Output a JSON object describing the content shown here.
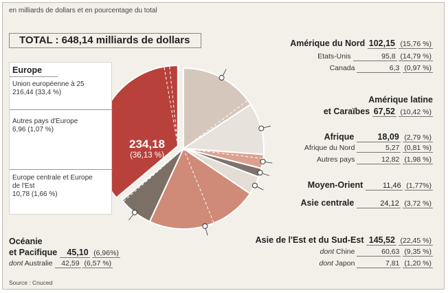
{
  "subtitle": "en milliards de dollars et en pourcentage du total",
  "total": {
    "label": "TOTAL :",
    "value": "648,14 milliards de dollars"
  },
  "europe": {
    "title": "Europe",
    "value": "234,18",
    "percent": "(36,13 %)",
    "items": [
      {
        "name": "Union européenne à 25",
        "value": "216,44",
        "percent": "(33,4 %)"
      },
      {
        "name": "Autres pays d'Europe",
        "value": "6,96",
        "percent": "(1,07 %)"
      },
      {
        "name": "Europe centrale et Europe de l'Est",
        "value": "10,78",
        "percent": "(1,66 %)"
      }
    ]
  },
  "amerique_nord": {
    "name": "Amérique du Nord",
    "value": "102,15",
    "percent": "(15,76 %)",
    "items": [
      {
        "name": "Etats-Unis",
        "value": "95,8",
        "percent": "(14,79 %)"
      },
      {
        "name": "Canada",
        "value": "6,3",
        "percent": "(0,97 %)"
      }
    ]
  },
  "amerique_latine": {
    "name_line1": "Amérique latine",
    "name_line2": "et Caraïbes",
    "value": "67,52",
    "percent": "(10,42 %)"
  },
  "afrique": {
    "name": "Afrique",
    "value": "18,09",
    "percent": "(2,79 %)",
    "items": [
      {
        "name": "Afrique du Nord",
        "value": "5,27",
        "percent": "(0,81 %)"
      },
      {
        "name": "Autres pays",
        "value": "12,82",
        "percent": "(1,98 %)"
      }
    ]
  },
  "moyen_orient": {
    "name": "Moyen-Orient",
    "value": "11,46",
    "percent": "(1,77%)"
  },
  "asie_centrale": {
    "name": "Asie centrale",
    "value": "24,12",
    "percent": "(3,72 %)"
  },
  "asie_est": {
    "name": "Asie de l'Est et du Sud-Est",
    "value": "145,52",
    "percent": "(22,45 %)",
    "items": [
      {
        "prefix": "dont",
        "name": "Chine",
        "value": "60,63",
        "percent": "(9,35 %)"
      },
      {
        "prefix": "dont",
        "name": "Japon",
        "value": "7,81",
        "percent": "(1,20 %)"
      }
    ]
  },
  "oceanie": {
    "name_line1": "Océanie",
    "name_line2": "et Pacifique",
    "value": "45,10",
    "percent": "(6,96%)",
    "items": [
      {
        "prefix": "dont",
        "name": "Australie",
        "value": "42,59",
        "percent": "(6,57 %)"
      }
    ]
  },
  "source": "Source : Cnuced",
  "chart_data": {
    "type": "pie",
    "total": 648.14,
    "slices": [
      {
        "label": "Europe",
        "value": 234.18,
        "color": "#b8413c",
        "exploded": true,
        "subdivisions": [
          {
            "label": "Union européenne à 25",
            "value": 216.44
          },
          {
            "label": "Autres pays d'Europe",
            "value": 6.96
          },
          {
            "label": "Europe centrale et Europe de l'Est",
            "value": 10.78
          }
        ]
      },
      {
        "label": "Amérique du Nord",
        "value": 102.15,
        "color": "#d6c7bd",
        "subdivisions": [
          {
            "label": "Etats-Unis",
            "value": 95.8
          },
          {
            "label": "Canada",
            "value": 6.3
          }
        ]
      },
      {
        "label": "Amérique latine et Caraïbes",
        "value": 67.52,
        "color": "#e8e2dc"
      },
      {
        "label": "Afrique",
        "value": 18.09,
        "color": "#dca08f",
        "subdivisions": [
          {
            "label": "Afrique du Nord",
            "value": 5.27
          },
          {
            "label": "Autres pays",
            "value": 12.82
          }
        ]
      },
      {
        "label": "Moyen-Orient",
        "value": 11.46,
        "color": "#7e726a"
      },
      {
        "label": "Asie centrale",
        "value": 24.12,
        "color": "#e4ddd6"
      },
      {
        "label": "Asie de l'Est et du Sud-Est",
        "value": 145.52,
        "color": "#cf8a78",
        "subdivisions": [
          {
            "label": "Chine",
            "value": 60.63
          },
          {
            "label": "Japon",
            "value": 7.81
          }
        ]
      },
      {
        "label": "Océanie et Pacifique",
        "value": 45.1,
        "color": "#7b6f66",
        "subdivisions": [
          {
            "label": "Australie",
            "value": 42.59
          }
        ]
      }
    ]
  }
}
